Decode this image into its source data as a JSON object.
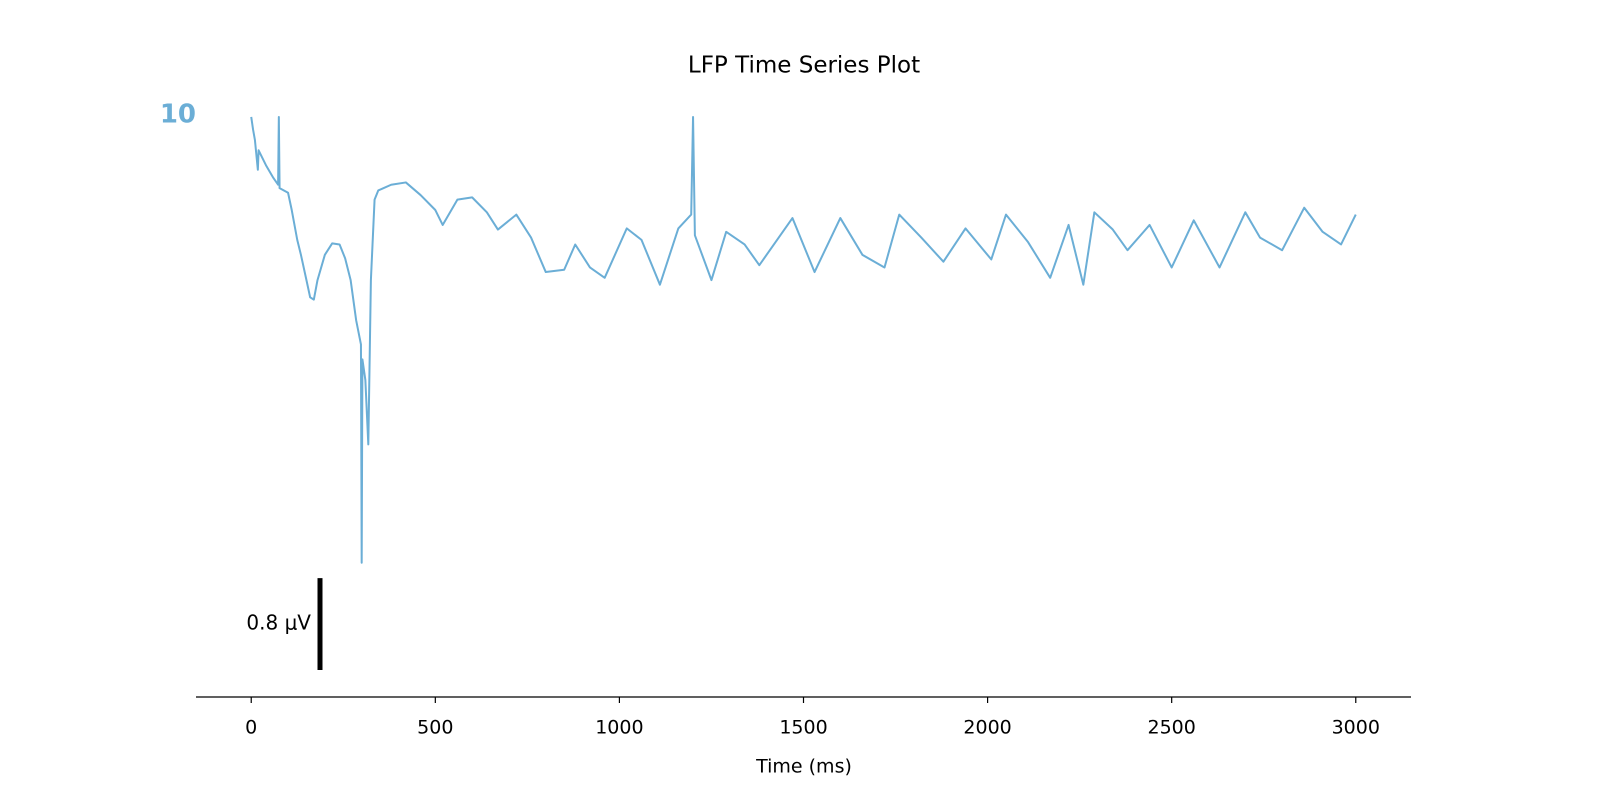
{
  "chart_data": {
    "type": "line",
    "title": "LFP Time Series Plot",
    "x_label": "Time (ms)",
    "channel_label": "10",
    "scale_bar": {
      "value": 0.8,
      "label": "0.8 μV"
    },
    "xlim": [
      -150,
      3150
    ],
    "xticks": [
      0,
      500,
      1000,
      1500,
      2000,
      2500,
      3000
    ],
    "ylim": [
      -3.9,
      1.2
    ],
    "series": [
      {
        "name": "10",
        "color": "#6baed6",
        "x": [
          0,
          5,
          10,
          18,
          20,
          40,
          60,
          73,
          75,
          77,
          100,
          110,
          125,
          135,
          150,
          160,
          170,
          180,
          200,
          220,
          240,
          255,
          270,
          285,
          298,
          300,
          302,
          310,
          318,
          325,
          335,
          345,
          380,
          420,
          460,
          500,
          520,
          560,
          600,
          640,
          670,
          720,
          760,
          800,
          850,
          880,
          920,
          960,
          1020,
          1060,
          1110,
          1160,
          1195,
          1200,
          1205,
          1250,
          1290,
          1340,
          1380,
          1470,
          1530,
          1600,
          1660,
          1720,
          1760,
          1820,
          1880,
          1940,
          2010,
          2050,
          2110,
          2170,
          2220,
          2260,
          2290,
          2340,
          2380,
          2440,
          2500,
          2560,
          2630,
          2700,
          2740,
          2800,
          2860,
          2910,
          2960,
          3000
        ],
        "values": [
          1.07,
          0.96,
          0.87,
          0.61,
          0.78,
          0.65,
          0.54,
          0.48,
          1.07,
          0.45,
          0.41,
          0.26,
          0,
          -0.13,
          -0.35,
          -0.5,
          -0.52,
          -0.35,
          -0.13,
          -0.03,
          -0.04,
          -0.16,
          -0.35,
          -0.7,
          -0.91,
          -2.81,
          -1.04,
          -1.22,
          -1.78,
          -0.35,
          0.35,
          0.43,
          0.48,
          0.5,
          0.39,
          0.26,
          0.13,
          0.35,
          0.37,
          0.24,
          0.09,
          0.22,
          0.02,
          -0.28,
          -0.26,
          -0.04,
          -0.24,
          -0.33,
          0.1,
          0,
          -0.39,
          0.1,
          0.22,
          1.07,
          0.04,
          -0.35,
          0.07,
          -0.04,
          -0.22,
          0.19,
          -0.28,
          0.19,
          -0.13,
          -0.24,
          0.22,
          0.02,
          -0.19,
          0.1,
          -0.17,
          0.22,
          -0.02,
          -0.33,
          0.13,
          -0.39,
          0.24,
          0.09,
          -0.09,
          0.13,
          -0.24,
          0.17,
          -0.24,
          0.24,
          0.02,
          -0.09,
          0.28,
          0.07,
          -0.04,
          0.22
        ]
      }
    ]
  }
}
